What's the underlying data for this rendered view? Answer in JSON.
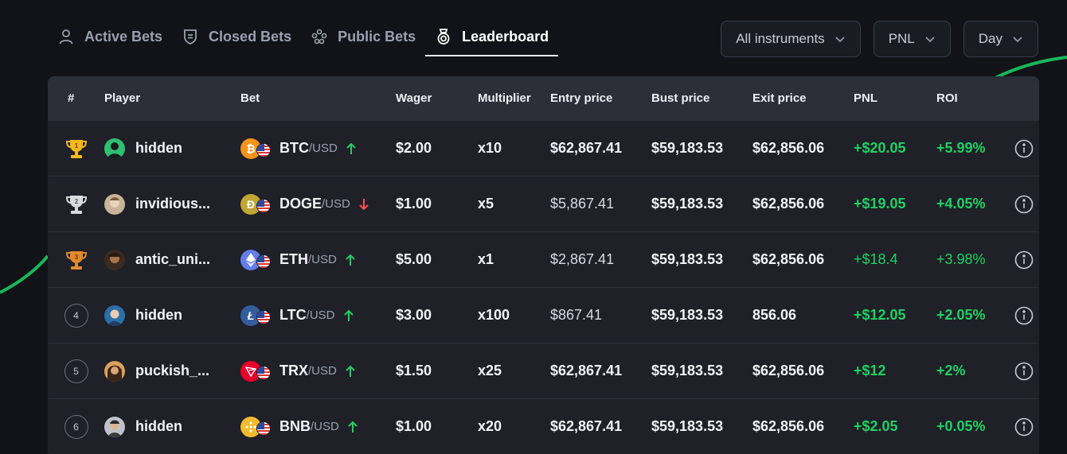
{
  "tabs": [
    {
      "label": "Active Bets",
      "icon": "user-icon",
      "active": false
    },
    {
      "label": "Closed Bets",
      "icon": "shield-icon",
      "active": false
    },
    {
      "label": "Public Bets",
      "icon": "group-icon",
      "active": false
    },
    {
      "label": "Leaderboard",
      "icon": "medal-icon",
      "active": true
    }
  ],
  "filters": {
    "instruments": "All instruments",
    "metric": "PNL",
    "period": "Day"
  },
  "columns": {
    "rank": "#",
    "player": "Player",
    "bet": "Bet",
    "wager": "Wager",
    "multiplier": "Multiplier",
    "entry": "Entry price",
    "bust": "Bust price",
    "exit": "Exit price",
    "pnl": "PNL",
    "roi": "ROI"
  },
  "rows": [
    {
      "rank": "1",
      "player": "hidden",
      "base": "BTC",
      "quote": "/USD",
      "direction": "up",
      "wager": "$2.00",
      "multiplier": "x10",
      "entry": "$62,867.41",
      "bust": "$59,183.53",
      "exit": "$62,856.06",
      "pnl": "+$20.05",
      "roi": "+5.99%"
    },
    {
      "rank": "2",
      "player": "invidious...",
      "base": "DOGE",
      "quote": "/USD",
      "direction": "down",
      "wager": "$1.00",
      "multiplier": "x5",
      "entry": "$5,867.41",
      "bust": "$59,183.53",
      "exit": "$62,856.06",
      "pnl": "+$19.05",
      "roi": "+4.05%"
    },
    {
      "rank": "3",
      "player": "antic_uni...",
      "base": "ETH",
      "quote": "/USD",
      "direction": "up",
      "wager": "$5.00",
      "multiplier": "x1",
      "entry": "$2,867.41",
      "bust": "$59,183.53",
      "exit": "$62,856.06",
      "pnl": "+$18.4",
      "roi": "+3.98%"
    },
    {
      "rank": "4",
      "player": "hidden",
      "base": "LTC",
      "quote": "/USD",
      "direction": "up",
      "wager": "$3.00",
      "multiplier": "x100",
      "entry": "$867.41",
      "bust": "$59,183.53",
      "exit": "856.06",
      "pnl": "+$12.05",
      "roi": "+2.05%"
    },
    {
      "rank": "5",
      "player": "puckish_...",
      "base": "TRX",
      "quote": "/USD",
      "direction": "up",
      "wager": "$1.50",
      "multiplier": "x25",
      "entry": "$62,867.41",
      "bust": "$59,183.53",
      "exit": "$62,856.06",
      "pnl": "+$12",
      "roi": "+2%"
    },
    {
      "rank": "6",
      "player": "hidden",
      "base": "BNB",
      "quote": "/USD",
      "direction": "up",
      "wager": "$1.00",
      "multiplier": "x20",
      "entry": "$62,867.41",
      "bust": "$59,183.53",
      "exit": "$62,856.06",
      "pnl": "+$2.05",
      "roi": "+0.05%"
    }
  ],
  "colors": {
    "positive": "#1fd163",
    "negative": "#ff4d4d",
    "gold": "#f5b81c",
    "silver": "#d9dbe0",
    "bronze": "#e08a2c"
  }
}
